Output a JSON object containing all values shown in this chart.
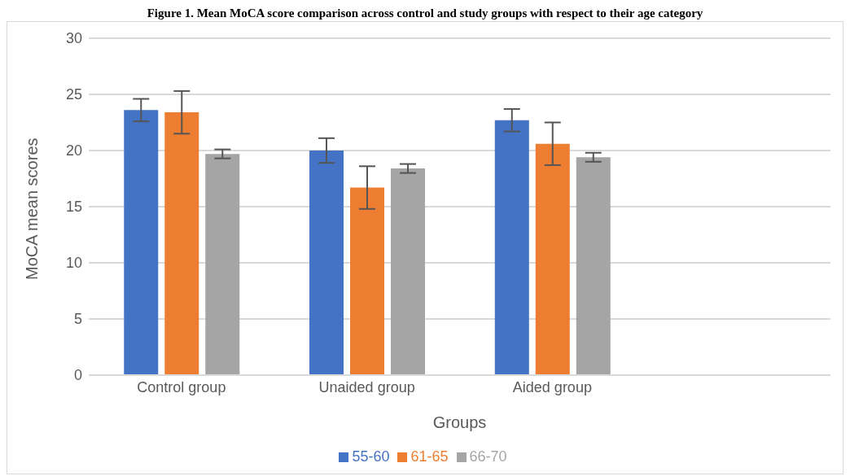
{
  "chart_data": {
    "type": "bar",
    "title": "Figure 1. Mean MoCA score comparison across control and study groups with respect to their age category",
    "xlabel": "Groups",
    "ylabel": "MoCA mean scores",
    "categories": [
      "Control group",
      "Unaided group",
      "Aided group",
      null
    ],
    "series": [
      {
        "name": "55-60",
        "color": "#4472c4",
        "values": [
          23.6,
          20.0,
          22.7,
          null
        ],
        "errors": [
          1.0,
          1.1,
          1.0,
          null
        ]
      },
      {
        "name": "61-65",
        "color": "#ed7d31",
        "values": [
          23.4,
          16.7,
          20.6,
          null
        ],
        "errors": [
          1.9,
          1.9,
          1.9,
          null
        ]
      },
      {
        "name": "66-70",
        "color": "#a5a5a5",
        "values": [
          19.7,
          18.4,
          19.4,
          null
        ],
        "errors": [
          0.4,
          0.4,
          0.4,
          null
        ]
      }
    ],
    "ylim": [
      0,
      30
    ],
    "yticks": [
      0,
      5,
      10,
      15,
      20,
      25,
      30
    ],
    "grid": "y",
    "legend": "bottom"
  }
}
